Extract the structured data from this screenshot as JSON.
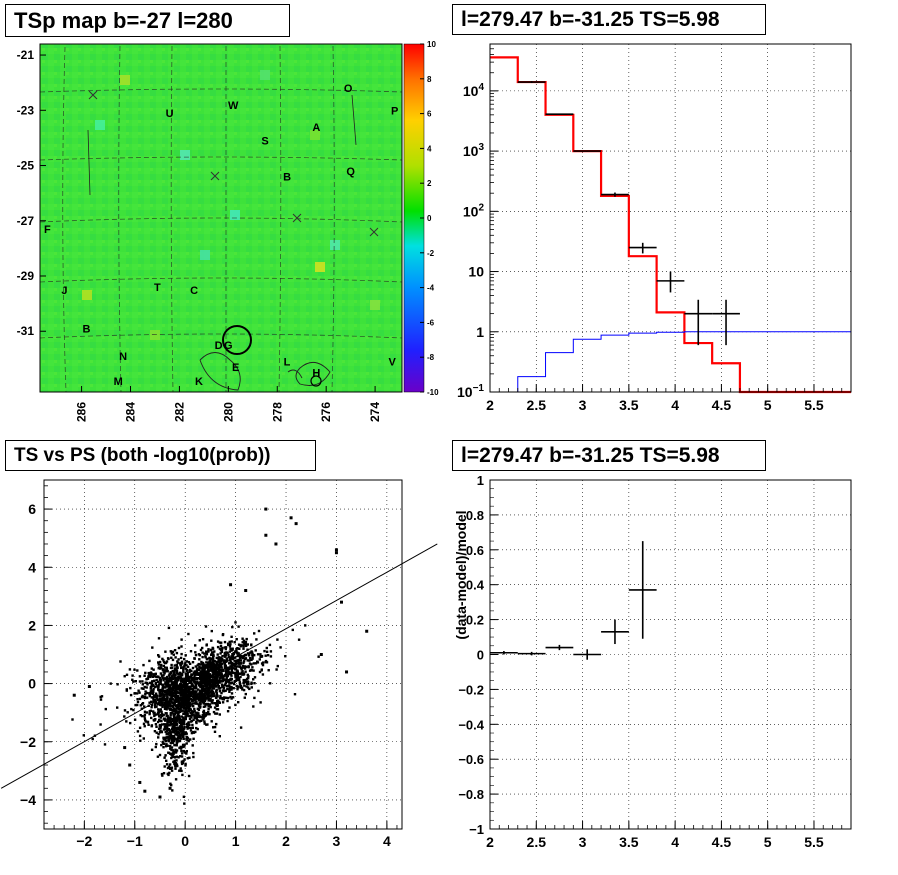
{
  "panels": {
    "tsmap_title": "TSp map b=-27 l=280",
    "spectrum_title": "l=279.47 b=-31.25 TS=5.98",
    "scatter_title": "TS vs PS (both -log10(prob))",
    "residual_title": "l=279.47 b=-31.25 TS=5.98"
  },
  "chart_data": [
    {
      "type": "heatmap",
      "title": "TSp map b=-27 l=280",
      "x_ticks": [
        "286",
        "284",
        "282",
        "280",
        "278",
        "276",
        "274"
      ],
      "y_ticks": [
        "-21",
        "-23",
        "-25",
        "-27",
        "-29",
        "-31"
      ],
      "colorbar_ticks": [
        "10",
        "8",
        "6",
        "4",
        "2",
        "0",
        "-2",
        "-4",
        "-6",
        "-8",
        "-10"
      ],
      "zlim": [
        -10,
        10
      ],
      "source_labels": [
        {
          "text": "O",
          "l": 275.1,
          "b": -22.2
        },
        {
          "text": "W",
          "l": 279.8,
          "b": -22.8
        },
        {
          "text": "P",
          "l": 273.2,
          "b": -23.0
        },
        {
          "text": "U",
          "l": 282.4,
          "b": -23.1
        },
        {
          "text": "A",
          "l": 276.4,
          "b": -23.6
        },
        {
          "text": "S",
          "l": 278.5,
          "b": -24.1
        },
        {
          "text": "Q",
          "l": 275.0,
          "b": -25.2
        },
        {
          "text": "B",
          "l": 277.6,
          "b": -25.4
        },
        {
          "text": "F",
          "l": 287.4,
          "b": -27.3
        },
        {
          "text": "J",
          "l": 286.7,
          "b": -29.5
        },
        {
          "text": "T",
          "l": 282.9,
          "b": -29.4
        },
        {
          "text": "C",
          "l": 281.4,
          "b": -29.5
        },
        {
          "text": "B",
          "l": 285.8,
          "b": -30.9
        },
        {
          "text": "D",
          "l": 280.4,
          "b": -31.5
        },
        {
          "text": "G",
          "l": 280.0,
          "b": -31.5
        },
        {
          "text": "N",
          "l": 284.3,
          "b": -31.9
        },
        {
          "text": "L",
          "l": 277.6,
          "b": -32.1
        },
        {
          "text": "E",
          "l": 279.7,
          "b": -32.3
        },
        {
          "text": "H",
          "l": 276.4,
          "b": -32.5
        },
        {
          "text": "V",
          "l": 273.3,
          "b": -32.1
        },
        {
          "text": "M",
          "l": 284.5,
          "b": -32.8
        },
        {
          "text": "K",
          "l": 281.2,
          "b": -32.8
        }
      ]
    },
    {
      "type": "line",
      "title": "l=279.47 b=-31.25 TS=5.98",
      "x_ticks": [
        "2",
        "2.5",
        "3",
        "3.5",
        "4",
        "4.5",
        "5",
        "5.5"
      ],
      "y_ticks": [
        "10^-1",
        "1",
        "10",
        "10^2",
        "10^3",
        "10^4"
      ],
      "xlim": [
        2.0,
        5.9
      ],
      "ylim": [
        0.1,
        60000
      ],
      "yscale": "log",
      "grid": true,
      "series": [
        {
          "color": "#ff0000",
          "step": true,
          "edges": [
            2.0,
            2.3,
            2.6,
            2.9,
            3.2,
            3.5,
            3.8,
            4.1,
            4.4,
            4.7,
            5.0,
            5.3,
            5.6,
            5.9
          ],
          "values": [
            36000,
            14000,
            4000,
            1000,
            180,
            18,
            2.1,
            0.65,
            0.3,
            0.1,
            0.1,
            0.1,
            0.1
          ]
        },
        {
          "color": "#0000ff",
          "step": true,
          "edges": [
            2.0,
            2.3,
            2.6,
            2.9,
            3.2,
            3.5,
            3.8,
            4.1,
            4.4,
            4.7,
            5.0,
            5.3,
            5.6,
            5.9
          ],
          "values": [
            0.1,
            0.18,
            0.45,
            0.75,
            0.88,
            0.95,
            0.98,
            1.0,
            1.0,
            1.0,
            1.0,
            1.0,
            1.0
          ]
        },
        {
          "color": "#000000",
          "errorbars": true,
          "points": [
            {
              "x": 2.45,
              "y": 14000,
              "xerr": 0.15,
              "ylo": 13500,
              "yhi": 14500
            },
            {
              "x": 2.75,
              "y": 4100,
              "xerr": 0.15,
              "ylo": 4000,
              "yhi": 4200
            },
            {
              "x": 3.05,
              "y": 1000,
              "xerr": 0.15,
              "ylo": 980,
              "yhi": 1020
            },
            {
              "x": 3.35,
              "y": 190,
              "xerr": 0.15,
              "ylo": 175,
              "yhi": 205
            },
            {
              "x": 3.65,
              "y": 25,
              "xerr": 0.15,
              "ylo": 20,
              "yhi": 30
            },
            {
              "x": 3.95,
              "y": 7,
              "xerr": 0.15,
              "ylo": 4.5,
              "yhi": 10
            },
            {
              "x": 4.25,
              "y": 2,
              "xerr": 0.15,
              "ylo": 0.6,
              "yhi": 3.4
            },
            {
              "x": 4.55,
              "y": 2,
              "xerr": 0.15,
              "ylo": 0.6,
              "yhi": 3.4
            }
          ]
        }
      ]
    },
    {
      "type": "scatter",
      "title": "TS vs PS (both -log10(prob))",
      "x_ticks": [
        "-2",
        "-1",
        "0",
        "1",
        "2",
        "3",
        "4"
      ],
      "y_ticks": [
        "-4",
        "-2",
        "0",
        "2",
        "4",
        "6"
      ],
      "xlim": [
        -2.8,
        4.3
      ],
      "ylim": [
        -5,
        7
      ],
      "grid": true,
      "fit_line": {
        "x1": -3.65,
        "y1": -3.6,
        "x2": 5.0,
        "y2": 4.8
      },
      "cluster_description": "dense point cloud centred near (0,0), spread x -2.2..3.6, y -4..6",
      "outliers": [
        [
          1.6,
          6.0
        ],
        [
          2.1,
          5.7
        ],
        [
          2.2,
          5.5
        ],
        [
          3.0,
          4.6
        ],
        [
          3.0,
          4.5
        ],
        [
          1.6,
          5.1
        ],
        [
          1.8,
          4.8
        ],
        [
          3.1,
          2.8
        ],
        [
          3.6,
          1.8
        ],
        [
          2.7,
          1.0
        ],
        [
          3.2,
          0.4
        ],
        [
          -1.9,
          -0.1
        ],
        [
          -2.2,
          -0.4
        ],
        [
          -1.2,
          -2.2
        ],
        [
          -1.1,
          -2.8
        ],
        [
          -0.9,
          -3.4
        ],
        [
          -0.8,
          -3.7
        ],
        [
          -0.5,
          -3.9
        ],
        [
          -0.3,
          -3.6
        ],
        [
          0.9,
          3.4
        ],
        [
          1.2,
          3.2
        ]
      ]
    },
    {
      "type": "scatter",
      "title": "l=279.47 b=-31.25 TS=5.98",
      "ylabel": "(data-model)/model",
      "x_ticks": [
        "2",
        "2.5",
        "3",
        "3.5",
        "4",
        "4.5",
        "5",
        "5.5"
      ],
      "y_ticks": [
        "-1",
        "-0.8",
        "-0.6",
        "-0.4",
        "-0.2",
        "0",
        "0.2",
        "0.4",
        "0.6",
        "0.8",
        "1"
      ],
      "xlim": [
        2.0,
        5.9
      ],
      "ylim": [
        -1,
        1
      ],
      "grid": true,
      "points": [
        {
          "x": 2.15,
          "y": 0.01,
          "xerr": 0.15,
          "ylo": 0.0,
          "yhi": 0.02
        },
        {
          "x": 2.45,
          "y": 0.005,
          "xerr": 0.15,
          "ylo": -0.005,
          "yhi": 0.015
        },
        {
          "x": 2.75,
          "y": 0.04,
          "xerr": 0.15,
          "ylo": 0.025,
          "yhi": 0.055
        },
        {
          "x": 3.05,
          "y": 0.0,
          "xerr": 0.15,
          "ylo": -0.03,
          "yhi": 0.03
        },
        {
          "x": 3.35,
          "y": 0.13,
          "xerr": 0.15,
          "ylo": 0.06,
          "yhi": 0.2
        },
        {
          "x": 3.65,
          "y": 0.37,
          "xerr": 0.15,
          "ylo": 0.09,
          "yhi": 0.65
        }
      ]
    }
  ]
}
